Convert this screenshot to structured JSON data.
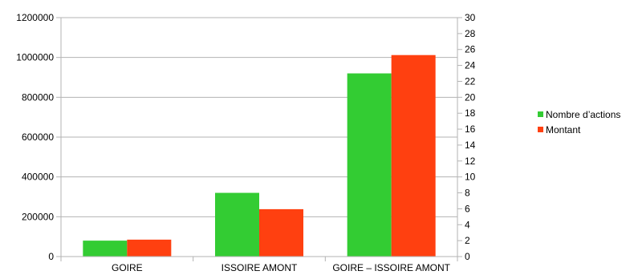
{
  "chart_data": {
    "type": "bar",
    "categories": [
      "GOIRE",
      "ISSOIRE AMONT",
      "GOIRE – ISSOIRE AMONT"
    ],
    "series": [
      {
        "name": "Nombre d’actions",
        "axis": "right",
        "color": "#33cc33",
        "values": [
          2,
          8,
          23
        ]
      },
      {
        "name": "Montant",
        "axis": "left",
        "color": "#ff4010",
        "values": [
          85000,
          238000,
          1012000
        ]
      }
    ],
    "y_left": {
      "min": 0,
      "max": 1200000,
      "step": 200000,
      "ticks": [
        "0",
        "200000",
        "400000",
        "600000",
        "800000",
        "1000000",
        "1200000"
      ]
    },
    "y_right": {
      "min": 0,
      "max": 30,
      "step": 2,
      "ticks": [
        "0",
        "2",
        "4",
        "6",
        "8",
        "10",
        "12",
        "14",
        "16",
        "18",
        "20",
        "22",
        "24",
        "26",
        "28",
        "30"
      ]
    },
    "grid": true,
    "legend": "right"
  }
}
